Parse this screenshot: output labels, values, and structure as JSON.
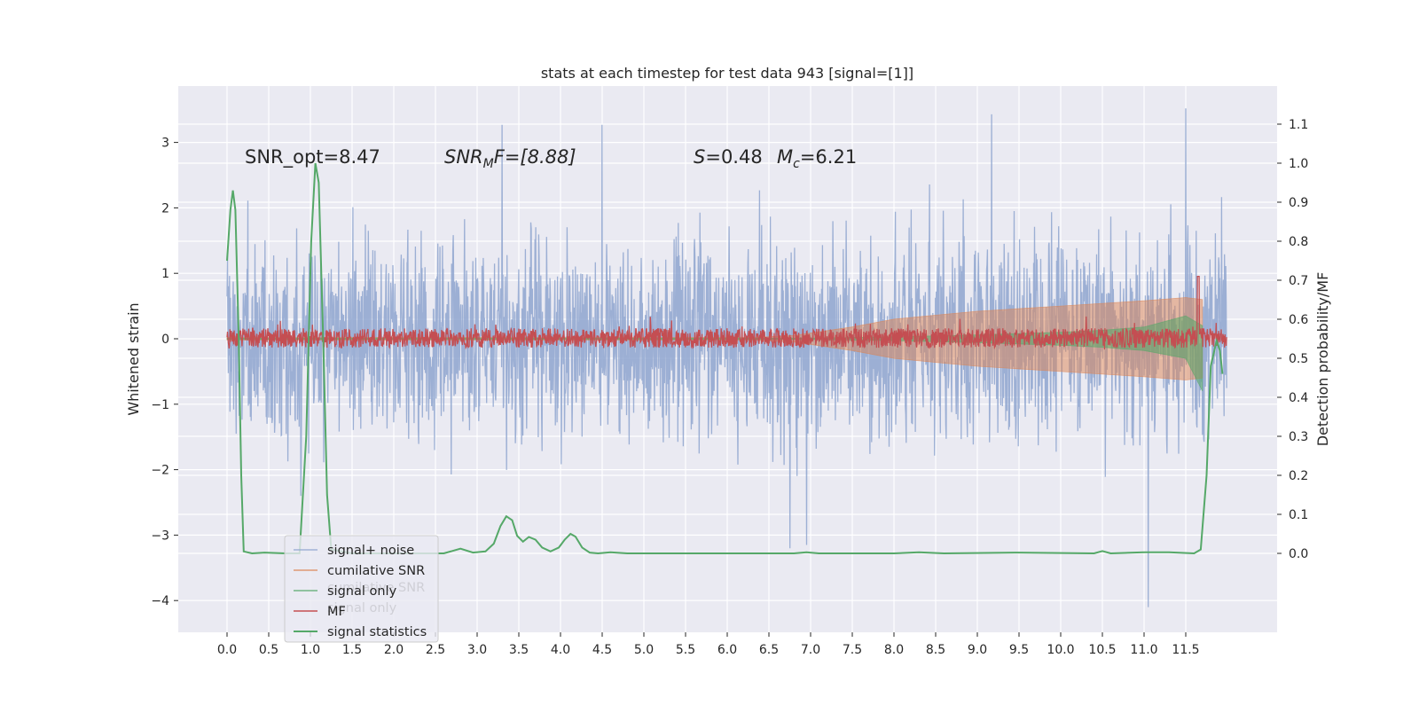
{
  "chart_data": {
    "type": "line",
    "title": "stats at each timestep for test data 943 [signal=[1]]",
    "xlabel": "",
    "ylabel": "Whitened strain",
    "y2label": "Detection probability/MF",
    "xlim": [
      -0.25,
      12.45
    ],
    "ylim": [
      -4.45,
      3.88
    ],
    "y2lim": [
      -0.195,
      1.195
    ],
    "xticks": [
      "0.0",
      "0.5",
      "1.0",
      "1.5",
      "2.0",
      "2.5",
      "3.0",
      "3.5",
      "4.0",
      "4.5",
      "5.0",
      "5.5",
      "6.0",
      "6.5",
      "7.0",
      "7.5",
      "8.0",
      "8.5",
      "9.0",
      "9.5",
      "10.0",
      "10.5",
      "11.0",
      "11.5"
    ],
    "yticks": [
      "3",
      "2",
      "1",
      "0",
      "−1",
      "−2",
      "−3",
      "−4"
    ],
    "y2ticks": [
      "1.1",
      "1.0",
      "0.9",
      "0.8",
      "0.7",
      "0.6",
      "0.5",
      "0.4",
      "0.3",
      "0.2",
      "0.1",
      "0.0"
    ],
    "grid": true,
    "legend_position": "lower-left",
    "annotations": {
      "snr_opt": "SNR_opt=8.47",
      "snr_mf_symbol": "SNR",
      "snr_mf_sub": "M",
      "snr_mf_rest": "F=[8.88]",
      "s_symbol": "S",
      "s_rest": "=0.48",
      "mc_symbol": "M",
      "mc_sub": "c",
      "mc_rest": "=6.21"
    },
    "series": [
      {
        "name": "signal+ noise",
        "color": "#8ea4cf",
        "axis": "left",
        "note": "white noise, amplitude approx ±2 with peaks to 3.5/−4.1, t in [0, 11.99]",
        "peaks": [
          {
            "x": 3.3,
            "y": 3.27
          },
          {
            "x": 4.5,
            "y": 3.27
          },
          {
            "x": 9.17,
            "y": 3.43
          },
          {
            "x": 11.5,
            "y": 3.52
          },
          {
            "x": 11.05,
            "y": -4.1
          },
          {
            "x": 6.75,
            "y": -3.2
          },
          {
            "x": 6.95,
            "y": -3.15
          }
        ]
      },
      {
        "name": "cumilative SNR",
        "color": "#dd8452",
        "axis": "left",
        "envelope": {
          "x": [
            0,
            6.3,
            6.8,
            7.5,
            8.0,
            8.5,
            9.0,
            10.0,
            10.5,
            11.0,
            11.5,
            11.7
          ],
          "upper": [
            0.02,
            0.02,
            0.05,
            0.18,
            0.3,
            0.36,
            0.42,
            0.5,
            0.54,
            0.58,
            0.63,
            0.6
          ],
          "lower": [
            -0.02,
            -0.02,
            -0.05,
            -0.18,
            -0.3,
            -0.36,
            -0.42,
            -0.5,
            -0.54,
            -0.58,
            -0.63,
            -0.6
          ]
        }
      },
      {
        "name": "signal only",
        "color": "#55a868",
        "axis": "left",
        "envelope": {
          "x": [
            0,
            7.0,
            8.0,
            9.0,
            10.0,
            10.5,
            11.0,
            11.5,
            11.7
          ],
          "upper": [
            0.01,
            0.01,
            0.03,
            0.06,
            0.1,
            0.13,
            0.18,
            0.35,
            0.2
          ],
          "lower": [
            -0.01,
            -0.01,
            -0.03,
            -0.06,
            -0.1,
            -0.13,
            -0.18,
            -0.3,
            -0.8
          ]
        }
      },
      {
        "name": "MF",
        "color": "#c44e52",
        "axis": "right",
        "note": "noisy band around 0.55 detection units, spike to 0.71 near t=11.65"
      },
      {
        "name": "signal statistics",
        "color": "#55a868",
        "axis": "right",
        "points": [
          {
            "x": 0.0,
            "y": 0.75
          },
          {
            "x": 0.04,
            "y": 0.88
          },
          {
            "x": 0.07,
            "y": 0.93
          },
          {
            "x": 0.1,
            "y": 0.88
          },
          {
            "x": 0.14,
            "y": 0.55
          },
          {
            "x": 0.17,
            "y": 0.2
          },
          {
            "x": 0.2,
            "y": 0.005
          },
          {
            "x": 0.3,
            "y": 0.0
          },
          {
            "x": 0.45,
            "y": 0.002
          },
          {
            "x": 0.7,
            "y": 0.0
          },
          {
            "x": 0.87,
            "y": 0.0
          },
          {
            "x": 0.95,
            "y": 0.3
          },
          {
            "x": 1.01,
            "y": 0.8
          },
          {
            "x": 1.06,
            "y": 1.0
          },
          {
            "x": 1.1,
            "y": 0.95
          },
          {
            "x": 1.16,
            "y": 0.5
          },
          {
            "x": 1.2,
            "y": 0.15
          },
          {
            "x": 1.25,
            "y": 0.01
          },
          {
            "x": 1.5,
            "y": 0.0
          },
          {
            "x": 2.0,
            "y": 0.0
          },
          {
            "x": 2.6,
            "y": 0.0
          },
          {
            "x": 2.8,
            "y": 0.012
          },
          {
            "x": 2.95,
            "y": 0.002
          },
          {
            "x": 3.1,
            "y": 0.005
          },
          {
            "x": 3.2,
            "y": 0.025
          },
          {
            "x": 3.28,
            "y": 0.07
          },
          {
            "x": 3.35,
            "y": 0.095
          },
          {
            "x": 3.42,
            "y": 0.085
          },
          {
            "x": 3.48,
            "y": 0.045
          },
          {
            "x": 3.55,
            "y": 0.03
          },
          {
            "x": 3.62,
            "y": 0.042
          },
          {
            "x": 3.7,
            "y": 0.035
          },
          {
            "x": 3.78,
            "y": 0.015
          },
          {
            "x": 3.88,
            "y": 0.005
          },
          {
            "x": 3.98,
            "y": 0.015
          },
          {
            "x": 4.05,
            "y": 0.035
          },
          {
            "x": 4.12,
            "y": 0.05
          },
          {
            "x": 4.18,
            "y": 0.043
          },
          {
            "x": 4.26,
            "y": 0.015
          },
          {
            "x": 4.35,
            "y": 0.002
          },
          {
            "x": 4.45,
            "y": 0.0
          },
          {
            "x": 4.6,
            "y": 0.003
          },
          {
            "x": 4.8,
            "y": 0.0
          },
          {
            "x": 6.0,
            "y": 0.0
          },
          {
            "x": 6.8,
            "y": 0.0
          },
          {
            "x": 6.95,
            "y": 0.003
          },
          {
            "x": 7.1,
            "y": 0.0
          },
          {
            "x": 8.0,
            "y": 0.0
          },
          {
            "x": 8.3,
            "y": 0.003
          },
          {
            "x": 8.6,
            "y": 0.0
          },
          {
            "x": 9.5,
            "y": 0.002
          },
          {
            "x": 10.4,
            "y": 0.0
          },
          {
            "x": 10.5,
            "y": 0.006
          },
          {
            "x": 10.6,
            "y": 0.0
          },
          {
            "x": 11.0,
            "y": 0.003
          },
          {
            "x": 11.3,
            "y": 0.003
          },
          {
            "x": 11.6,
            "y": 0.0
          },
          {
            "x": 11.68,
            "y": 0.01
          },
          {
            "x": 11.75,
            "y": 0.2
          },
          {
            "x": 11.8,
            "y": 0.48
          },
          {
            "x": 11.87,
            "y": 0.545
          },
          {
            "x": 11.91,
            "y": 0.52
          },
          {
            "x": 11.94,
            "y": 0.46
          }
        ]
      }
    ],
    "legend": [
      {
        "label": "signal+ noise",
        "color": "#8ea4cf"
      },
      {
        "label": "cumilative SNR",
        "color": "#dd8452"
      },
      {
        "label": "signal only",
        "color": "#55a868"
      },
      {
        "label": "MF",
        "color": "#c44e52"
      },
      {
        "label": "signal statistics",
        "color": "#55a868"
      }
    ],
    "legend_ghost": [
      "cumilative SNR",
      "signal only"
    ]
  }
}
